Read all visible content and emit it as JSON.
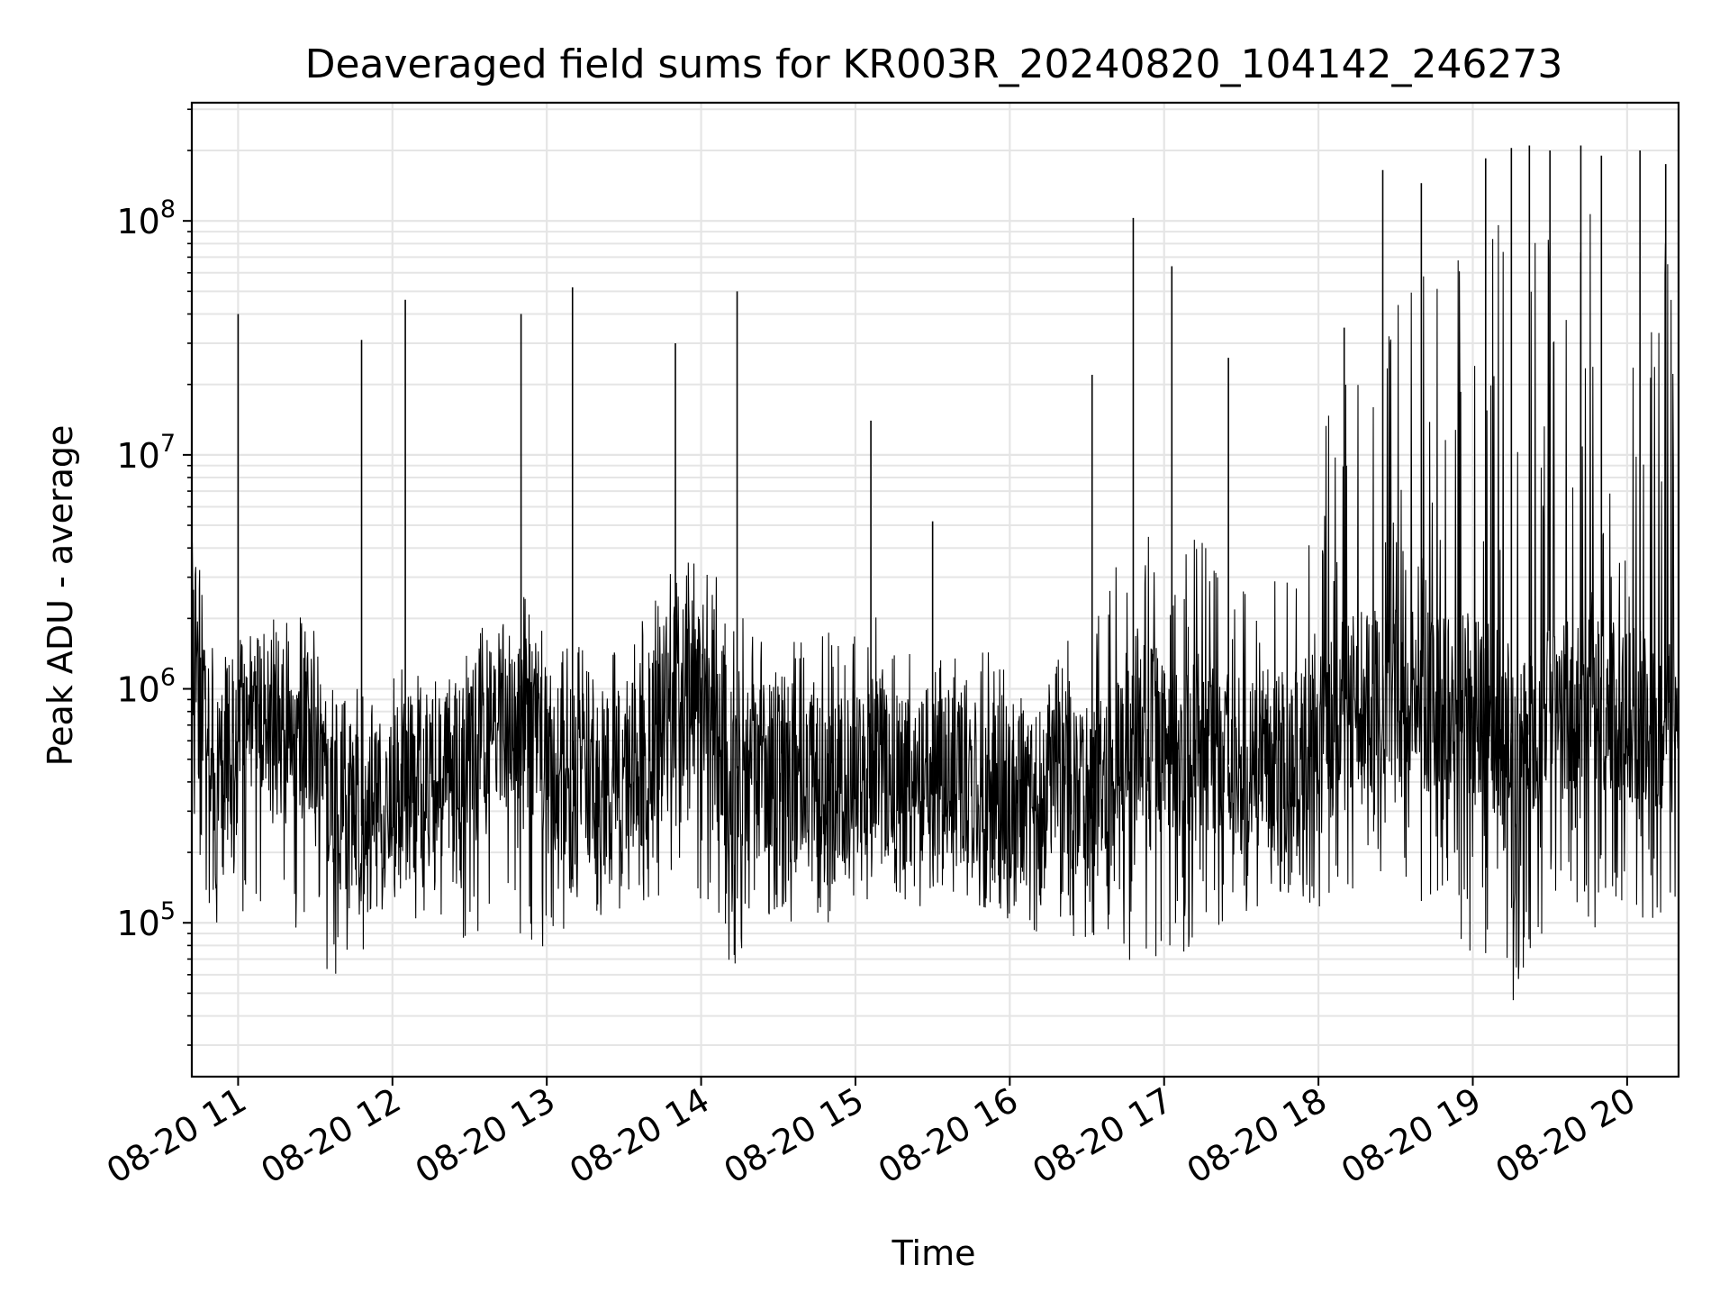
{
  "chart_data": {
    "type": "line",
    "title": "Deaveraged field sums for KR003R_20240820_104142_246273",
    "xlabel": "Time",
    "ylabel": "Peak ADU - average",
    "x_range": [
      "2024-08-20 10:42",
      "2024-08-20 20:20"
    ],
    "y_range": [
      22000,
      320000000
    ],
    "y_scale": "log",
    "grid": true,
    "legend": "none",
    "x_ticks": [
      {
        "value": "2024-08-20 11:00",
        "label": "08-20 11"
      },
      {
        "value": "2024-08-20 12:00",
        "label": "08-20 12"
      },
      {
        "value": "2024-08-20 13:00",
        "label": "08-20 13"
      },
      {
        "value": "2024-08-20 14:00",
        "label": "08-20 14"
      },
      {
        "value": "2024-08-20 15:00",
        "label": "08-20 15"
      },
      {
        "value": "2024-08-20 16:00",
        "label": "08-20 16"
      },
      {
        "value": "2024-08-20 17:00",
        "label": "08-20 17"
      },
      {
        "value": "2024-08-20 18:00",
        "label": "08-20 18"
      },
      {
        "value": "2024-08-20 19:00",
        "label": "08-20 19"
      },
      {
        "value": "2024-08-20 20:00",
        "label": "08-20 20"
      }
    ],
    "y_ticks": [
      {
        "value": 100000,
        "base": "10",
        "exp": "5"
      },
      {
        "value": 1000000,
        "base": "10",
        "exp": "6"
      },
      {
        "value": 10000000,
        "base": "10",
        "exp": "7"
      },
      {
        "value": 100000000,
        "base": "10",
        "exp": "8"
      }
    ],
    "colors": {
      "line": "#000000",
      "grid": "#e5e5e5",
      "frame": "#000000"
    },
    "series": [
      {
        "x": [
          "2024-08-20 10:42",
          "2024-08-20 10:45",
          "2024-08-20 10:50",
          "2024-08-20 11:00",
          "2024-08-20 11:10",
          "2024-08-20 11:20",
          "2024-08-20 11:30",
          "2024-08-20 11:40",
          "2024-08-20 11:50",
          "2024-08-20 12:00",
          "2024-08-20 12:10",
          "2024-08-20 12:20",
          "2024-08-20 12:30",
          "2024-08-20 12:40",
          "2024-08-20 12:50",
          "2024-08-20 13:00",
          "2024-08-20 13:10",
          "2024-08-20 13:20",
          "2024-08-20 13:30",
          "2024-08-20 13:40",
          "2024-08-20 13:50",
          "2024-08-20 14:00",
          "2024-08-20 14:10",
          "2024-08-20 14:20",
          "2024-08-20 14:30",
          "2024-08-20 14:40",
          "2024-08-20 14:50",
          "2024-08-20 15:00",
          "2024-08-20 15:10",
          "2024-08-20 15:20",
          "2024-08-20 15:30",
          "2024-08-20 15:40",
          "2024-08-20 15:50",
          "2024-08-20 16:00",
          "2024-08-20 16:10",
          "2024-08-20 16:20",
          "2024-08-20 16:30",
          "2024-08-20 16:40",
          "2024-08-20 16:50",
          "2024-08-20 17:00",
          "2024-08-20 17:10",
          "2024-08-20 17:20",
          "2024-08-20 17:30",
          "2024-08-20 17:40",
          "2024-08-20 17:50",
          "2024-08-20 18:00",
          "2024-08-20 18:10",
          "2024-08-20 18:20",
          "2024-08-20 18:30",
          "2024-08-20 18:40",
          "2024-08-20 18:50",
          "2024-08-20 19:00",
          "2024-08-20 19:10",
          "2024-08-20 19:20",
          "2024-08-20 19:30",
          "2024-08-20 19:40",
          "2024-08-20 19:50",
          "2024-08-20 20:00",
          "2024-08-20 20:10",
          "2024-08-20 20:20"
        ],
        "typical": [
          2500000,
          1500000,
          300000,
          800000,
          850000,
          900000,
          700000,
          300000,
          250000,
          350000,
          400000,
          450000,
          500000,
          800000,
          700000,
          500000,
          450000,
          350000,
          400000,
          600000,
          900000,
          1000000,
          500000,
          400000,
          450000,
          400000,
          350000,
          400000,
          500000,
          400000,
          350000,
          400000,
          350000,
          350000,
          400000,
          400000,
          350000,
          500000,
          700000,
          600000,
          550000,
          500000,
          450000,
          500000,
          500000,
          600000,
          800000,
          900000,
          900000,
          900000,
          800000,
          900000,
          700000,
          600000,
          800000,
          900000,
          900000,
          800000,
          800000,
          700000
        ],
        "high": [
          3000000,
          1800000,
          1500000,
          1400000,
          1100000,
          1000000,
          900000,
          900000,
          1100000,
          1200000,
          1400000,
          1300000,
          1500000,
          2500000,
          3000000,
          1800000,
          1600000,
          1400000,
          1500000,
          2500000,
          3500000,
          4000000,
          2500000,
          2000000,
          1600000,
          1700000,
          1800000,
          2000000,
          2500000,
          1600000,
          1300000,
          1400000,
          1500000,
          1200000,
          1400000,
          1800000,
          1500000,
          3500000,
          5000000,
          6000000,
          5000000,
          3500000,
          3000000,
          3000000,
          3500000,
          12000000,
          25000000,
          40000000,
          50000000,
          60000000,
          70000000,
          100000000,
          120000000,
          100000000,
          110000000,
          120000000,
          130000000,
          120000000,
          100000000,
          90000000
        ],
        "low": [
          300000,
          150000,
          90000,
          100000,
          80000,
          70000,
          60000,
          55000,
          80000,
          90000,
          100000,
          90000,
          80000,
          100000,
          80000,
          70000,
          90000,
          100000,
          110000,
          120000,
          150000,
          100000,
          60000,
          80000,
          90000,
          100000,
          100000,
          110000,
          120000,
          110000,
          120000,
          130000,
          110000,
          90000,
          85000,
          90000,
          70000,
          80000,
          60000,
          55000,
          70000,
          80000,
          90000,
          100000,
          90000,
          110000,
          120000,
          130000,
          120000,
          110000,
          90000,
          70000,
          50000,
          40000,
          80000,
          100000,
          90000,
          85000,
          90000,
          100000
        ]
      }
    ],
    "peaks": {
      "x": [
        "2024-08-20 11:00",
        "2024-08-20 11:48",
        "2024-08-20 12:05",
        "2024-08-20 12:50",
        "2024-08-20 13:10",
        "2024-08-20 13:50",
        "2024-08-20 14:14",
        "2024-08-20 15:06",
        "2024-08-20 15:30",
        "2024-08-20 16:32",
        "2024-08-20 16:48",
        "2024-08-20 17:03",
        "2024-08-20 17:25",
        "2024-08-20 18:10",
        "2024-08-20 18:25",
        "2024-08-20 18:40",
        "2024-08-20 19:05",
        "2024-08-20 19:15",
        "2024-08-20 19:22",
        "2024-08-20 19:30",
        "2024-08-20 19:42",
        "2024-08-20 19:50",
        "2024-08-20 20:05",
        "2024-08-20 20:15"
      ],
      "values": [
        40000000,
        31000000,
        46000000,
        40000000,
        52000000,
        30000000,
        50000000,
        14000000,
        5200000,
        22000000,
        103000000,
        64000000,
        26000000,
        35000000,
        165000000,
        145000000,
        185000000,
        205000000,
        210000000,
        200000000,
        210000000,
        190000000,
        200000000,
        175000000
      ]
    }
  }
}
